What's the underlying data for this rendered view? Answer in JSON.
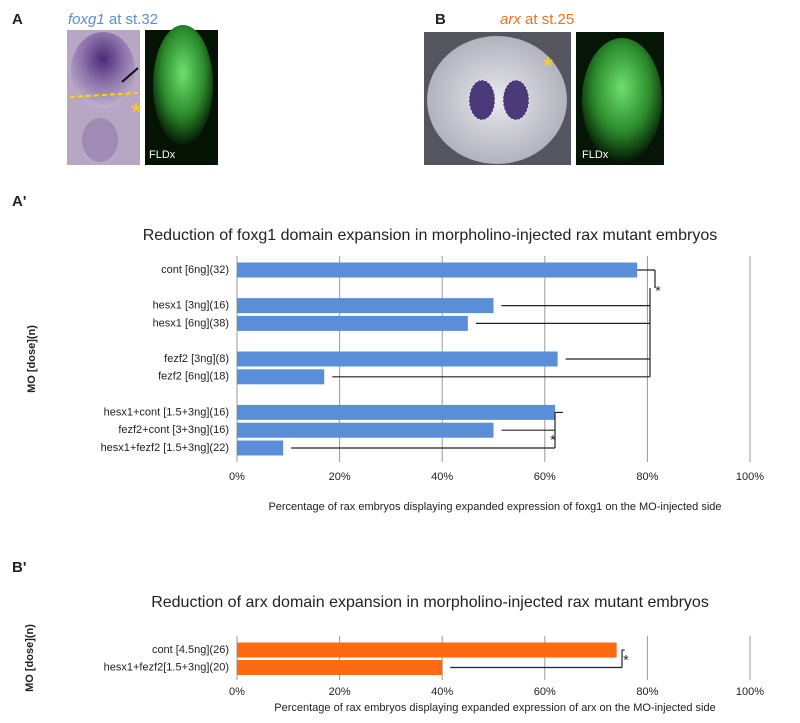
{
  "panels": {
    "a": {
      "letter": "A",
      "gene": "foxg1",
      "stage": "at st.32",
      "marker": "*",
      "tracer": "FLDx"
    },
    "b": {
      "letter": "B",
      "gene": "arx",
      "stage": "at st.25",
      "marker": "*",
      "tracer": "FLDx"
    },
    "a_prime": {
      "letter": "A'"
    },
    "b_prime": {
      "letter": "B'"
    }
  },
  "chart_data": [
    {
      "type": "barh",
      "title": "Reduction of foxg1 domain expansion in morpholino-injected rax mutant embryos",
      "xlabel": "Percentage of rax embryos displaying expanded expression of foxg1 on the MO-injected side",
      "ylabel": "MO [dose](n)",
      "categories": [
        "cont [6ng](32)",
        null,
        "hesx1 [3ng](16)",
        "hesx1 [6ng](38)",
        null,
        "fezf2 [3ng](8)",
        "fezf2 [6ng](18)",
        null,
        "hesx1+cont [1.5+3ng](16)",
        "fezf2+cont [3+3ng](16)",
        "hesx1+fezf2 [1.5+3ng](22)"
      ],
      "values": [
        78,
        null,
        50,
        45,
        null,
        62.5,
        17,
        null,
        62,
        50,
        9
      ],
      "color": "#5b8ed8",
      "xlim": [
        0,
        100
      ],
      "xticks": [
        {
          "value": 0,
          "label": "0%"
        },
        {
          "value": 20,
          "label": "20%"
        },
        {
          "value": 40,
          "label": "40%"
        },
        {
          "value": 60,
          "label": "60%"
        },
        {
          "value": 80,
          "label": "80%"
        },
        {
          "value": 100,
          "label": "100%"
        }
      ],
      "grid": true,
      "annotations": [
        "*",
        "*"
      ]
    },
    {
      "type": "barh",
      "title": "Reduction of arx domain expansion in morpholino-injected rax mutant embryos",
      "xlabel": "Percentage of rax embryos displaying expanded expression of arx on the MO-injected side",
      "ylabel": "MO [dose](n)",
      "categories": [
        "cont [4.5ng](26)",
        "hesx1+fezf2[1.5+3ng](20)"
      ],
      "values": [
        74,
        40
      ],
      "color": "#ff6a10",
      "xlim": [
        0,
        100
      ],
      "xticks": [
        {
          "value": 0,
          "label": "0%"
        },
        {
          "value": 20,
          "label": "20%"
        },
        {
          "value": 40,
          "label": "40%"
        },
        {
          "value": 60,
          "label": "60%"
        },
        {
          "value": 80,
          "label": "80%"
        },
        {
          "value": 100,
          "label": "100%"
        }
      ],
      "grid": true,
      "annotations": [
        "*"
      ]
    }
  ]
}
